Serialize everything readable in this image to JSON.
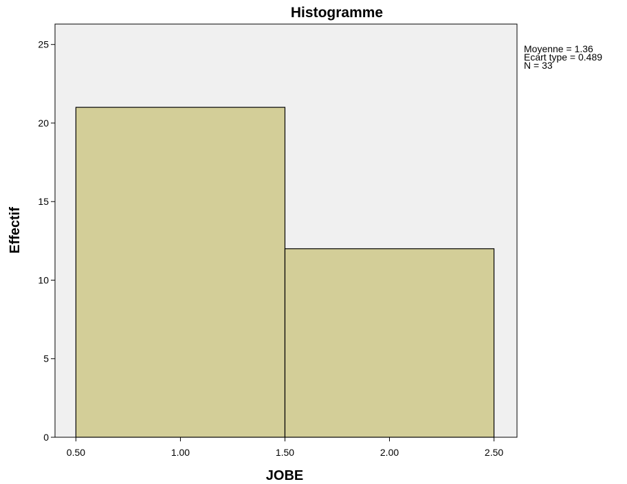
{
  "chart_data": {
    "type": "bar",
    "title": "Histogramme",
    "xlabel": "JOBE",
    "ylabel": "Effectif",
    "bins": [
      {
        "x0": 0.5,
        "x1": 1.5,
        "value": 21
      },
      {
        "x0": 1.5,
        "x1": 2.5,
        "value": 12
      }
    ],
    "xlim": [
      0.4,
      2.61
    ],
    "ylim": [
      0,
      26.3
    ],
    "x_ticks": [
      0.5,
      1.0,
      1.5,
      2.0,
      2.5
    ],
    "x_tick_labels": [
      "0.50",
      "1.00",
      "1.50",
      "2.00",
      "2.50"
    ],
    "y_ticks": [
      0,
      5,
      10,
      15,
      20,
      25
    ],
    "y_tick_labels": [
      "0",
      "5",
      "10",
      "15",
      "20",
      "25"
    ],
    "grid": false,
    "colors": {
      "bar_fill": "#d3ce98",
      "plot_background": "#f0f0f0",
      "stroke": "#000000"
    },
    "stats": {
      "mean": "Moyenne = 1.36",
      "std": "Ecart type = 0.489",
      "n": "N = 33"
    }
  }
}
